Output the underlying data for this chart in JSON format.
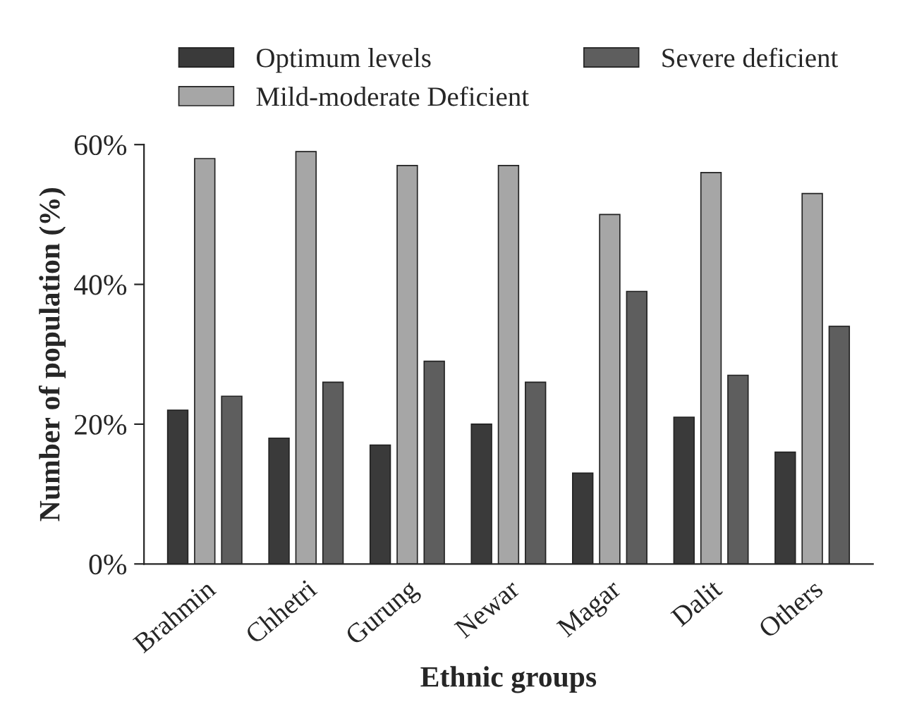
{
  "chart_data": {
    "type": "bar",
    "xlabel": "Ethnic groups",
    "ylabel": "Number of population (%)",
    "categories": [
      "Brahmin",
      "Chhetri",
      "Gurung",
      "Newar",
      "Magar",
      "Dalit",
      "Others"
    ],
    "series": [
      {
        "name": "Optimum levels",
        "color": "#3a3a3a",
        "values": [
          22,
          18,
          17,
          20,
          13,
          21,
          16
        ]
      },
      {
        "name": "Mild-moderate Deficient",
        "color": "#a6a6a6",
        "values": [
          58,
          59,
          57,
          57,
          50,
          56,
          53
        ]
      },
      {
        "name": "Severe deficient",
        "color": "#5e5e5e",
        "values": [
          24,
          26,
          29,
          26,
          39,
          27,
          34
        ]
      }
    ],
    "ylim": [
      0,
      60
    ],
    "yticks": [
      {
        "value": 0,
        "label": "0%"
      },
      {
        "value": 20,
        "label": "20%"
      },
      {
        "value": 40,
        "label": "40%"
      },
      {
        "value": 60,
        "label": "60%"
      }
    ],
    "legend": "top",
    "grid": false
  }
}
